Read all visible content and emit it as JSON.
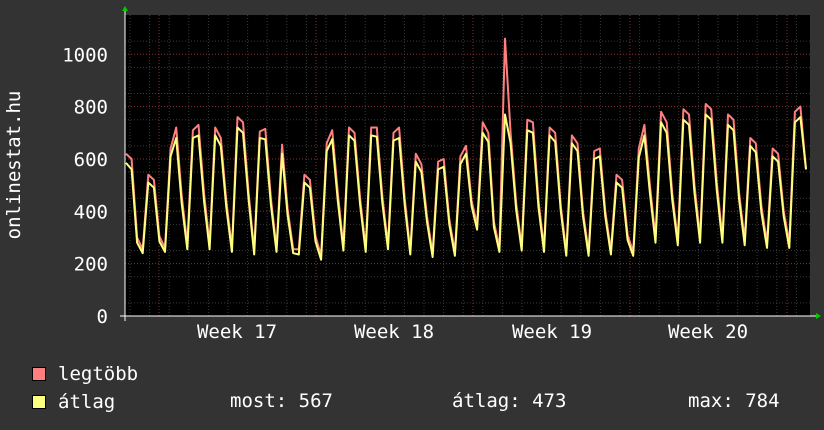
{
  "chart_data": {
    "type": "line",
    "ylabel": "onlinestat.hu",
    "ylim": [
      0,
      1150
    ],
    "yticks": [
      0,
      200,
      400,
      600,
      800,
      1000
    ],
    "xticks": [
      "Week 17",
      "Week 18",
      "Week 19",
      "Week 20"
    ],
    "grid": true,
    "series": [
      {
        "name": "legtöbb",
        "color": "#ff7f7f",
        "values": [
          620,
          600,
          300,
          255,
          540,
          520,
          305,
          260,
          640,
          720,
          460,
          275,
          710,
          730,
          470,
          275,
          720,
          680,
          440,
          260,
          760,
          740,
          470,
          250,
          705,
          715,
          450,
          260,
          655,
          410,
          255,
          255,
          540,
          520,
          305,
          230,
          660,
          710,
          470,
          265,
          720,
          700,
          450,
          260,
          720,
          720,
          455,
          270,
          700,
          720,
          450,
          250,
          620,
          580,
          380,
          240,
          590,
          600,
          370,
          245,
          610,
          650,
          440,
          350,
          740,
          700,
          360,
          260,
          1060,
          700,
          430,
          265,
          750,
          740,
          440,
          260,
          720,
          700,
          420,
          245,
          690,
          660,
          400,
          245,
          630,
          640,
          400,
          250,
          540,
          520,
          310,
          245,
          640,
          730,
          500,
          300,
          780,
          740,
          470,
          290,
          790,
          770,
          500,
          300,
          810,
          790,
          510,
          300,
          770,
          750,
          470,
          290,
          680,
          660,
          420,
          280,
          640,
          620,
          400,
          280,
          780,
          800,
          560
        ]
      },
      {
        "name": "átlag",
        "color": "#ffff7f",
        "values": [
          585,
          560,
          280,
          240,
          510,
          490,
          285,
          245,
          610,
          680,
          430,
          255,
          680,
          690,
          440,
          255,
          690,
          650,
          415,
          245,
          720,
          700,
          445,
          235,
          680,
          675,
          425,
          245,
          620,
          385,
          240,
          235,
          510,
          490,
          285,
          215,
          630,
          675,
          440,
          250,
          690,
          670,
          425,
          245,
          690,
          685,
          430,
          255,
          670,
          680,
          425,
          235,
          590,
          550,
          360,
          225,
          560,
          570,
          350,
          230,
          580,
          620,
          420,
          330,
          700,
          665,
          340,
          245,
          770,
          660,
          405,
          250,
          710,
          700,
          415,
          245,
          690,
          665,
          400,
          230,
          660,
          630,
          380,
          230,
          600,
          610,
          380,
          235,
          510,
          490,
          290,
          230,
          605,
          690,
          470,
          280,
          740,
          700,
          445,
          270,
          750,
          730,
          470,
          280,
          770,
          750,
          480,
          280,
          730,
          710,
          445,
          270,
          650,
          625,
          395,
          260,
          610,
          590,
          380,
          260,
          740,
          760,
          560
        ]
      }
    ]
  },
  "legend": {
    "max_label": "legtöbb",
    "avg_label": "átlag",
    "most": "most: 567",
    "atlag": "átlag: 473",
    "max": "max: 784"
  }
}
